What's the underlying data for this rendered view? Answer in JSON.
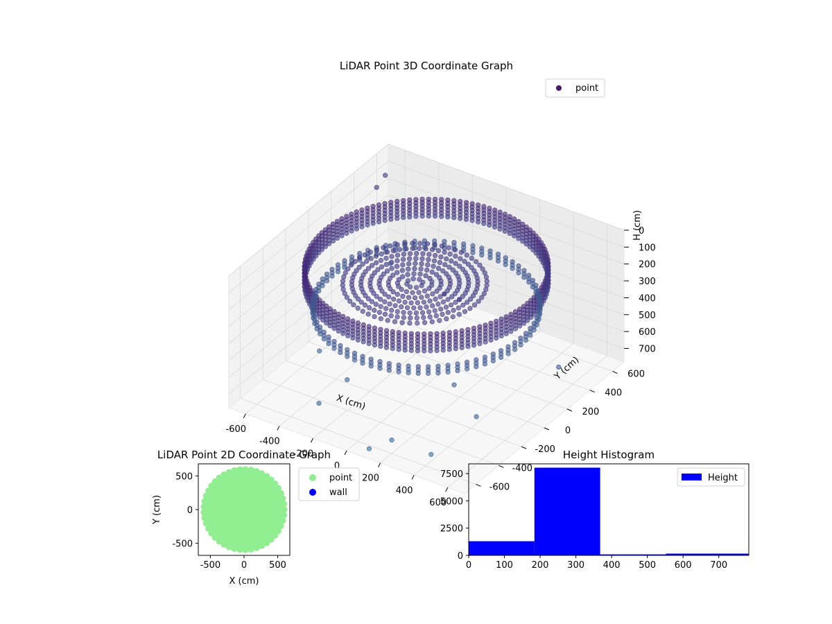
{
  "chart_data": [
    {
      "type": "scatter",
      "projection": "3d",
      "title": "LiDAR Point 3D Coordinate Graph",
      "xlabel": "X (cm)",
      "ylabel": "Y (cm)",
      "zlabel": "H (cm)",
      "xlim": [
        -700,
        700
      ],
      "ylim": [
        -700,
        700
      ],
      "zlim": [
        0,
        780
      ],
      "z_inverted": true,
      "x_ticks": [
        -600,
        -400,
        -200,
        0,
        200,
        400,
        600
      ],
      "y_ticks": [
        -600,
        -400,
        -200,
        0,
        200,
        400,
        600
      ],
      "z_ticks": [
        0,
        100,
        200,
        300,
        400,
        500,
        600,
        700
      ],
      "grid": true,
      "legend": {
        "position": "top-right",
        "entries": [
          "point"
        ]
      },
      "colormap": "viridis",
      "color_by": "height",
      "series": [
        {
          "name": "point",
          "color": "#46196b",
          "structures": [
            {
              "kind": "ring",
              "radius": 600,
              "h_min": 80,
              "h_max": 180,
              "step_deg": 3
            },
            {
              "kind": "ring",
              "radius": 560,
              "h_min": 300,
              "h_max": 340,
              "step_deg": 5
            },
            {
              "kind": "filled_disc",
              "radius": 380,
              "h": 300,
              "center": [
                -150,
                120
              ]
            }
          ],
          "outliers": [
            {
              "x": -600,
              "y": 450,
              "h": 80
            },
            {
              "x": -650,
              "y": 600,
              "h": 110
            },
            {
              "x": -500,
              "y": -200,
              "h": 650
            },
            {
              "x": -300,
              "y": -500,
              "h": 720
            },
            {
              "x": 200,
              "y": -600,
              "h": 700
            },
            {
              "x": 500,
              "y": -300,
              "h": 620
            },
            {
              "x": 650,
              "y": 200,
              "h": 550
            },
            {
              "x": -450,
              "y": 350,
              "h": 420
            },
            {
              "x": 100,
              "y": -650,
              "h": 760
            },
            {
              "x": 400,
              "y": -550,
              "h": 740
            },
            {
              "x": -200,
              "y": -400,
              "h": 600
            },
            {
              "x": 300,
              "y": -200,
              "h": 560
            }
          ]
        }
      ]
    },
    {
      "type": "scatter",
      "title": "LiDAR Point 2D Coordinate Graph",
      "xlabel": "X (cm)",
      "ylabel": "Y (cm)",
      "xlim": [
        -680,
        680
      ],
      "ylim": [
        -680,
        680
      ],
      "x_ticks": [
        -500,
        0,
        500
      ],
      "y_ticks": [
        -500,
        0,
        500
      ],
      "legend": {
        "position": "outside-right",
        "entries": [
          "point",
          "wall"
        ]
      },
      "series": [
        {
          "name": "point",
          "color": "#90ee90",
          "shape": "disc",
          "radius": 620
        },
        {
          "name": "wall",
          "color": "#0000ff",
          "points": []
        }
      ]
    },
    {
      "type": "bar",
      "subtype": "histogram",
      "title": "Height Histogram",
      "xlabel": "",
      "ylabel": "",
      "xlim": [
        0,
        784
      ],
      "ylim": [
        0,
        8400
      ],
      "x_ticks": [
        0,
        100,
        200,
        300,
        400,
        500,
        600,
        700
      ],
      "y_ticks": [
        0,
        2500,
        5000,
        7500
      ],
      "legend": {
        "position": "top-right",
        "entries": [
          "Height"
        ]
      },
      "bins": [
        {
          "x0": 0,
          "x1": 184,
          "count": 1300
        },
        {
          "x0": 184,
          "x1": 368,
          "count": 8050
        },
        {
          "x0": 368,
          "x1": 552,
          "count": 90
        },
        {
          "x0": 552,
          "x1": 784,
          "count": 160
        }
      ],
      "series": [
        {
          "name": "Height",
          "color": "#0000ff"
        }
      ]
    }
  ]
}
